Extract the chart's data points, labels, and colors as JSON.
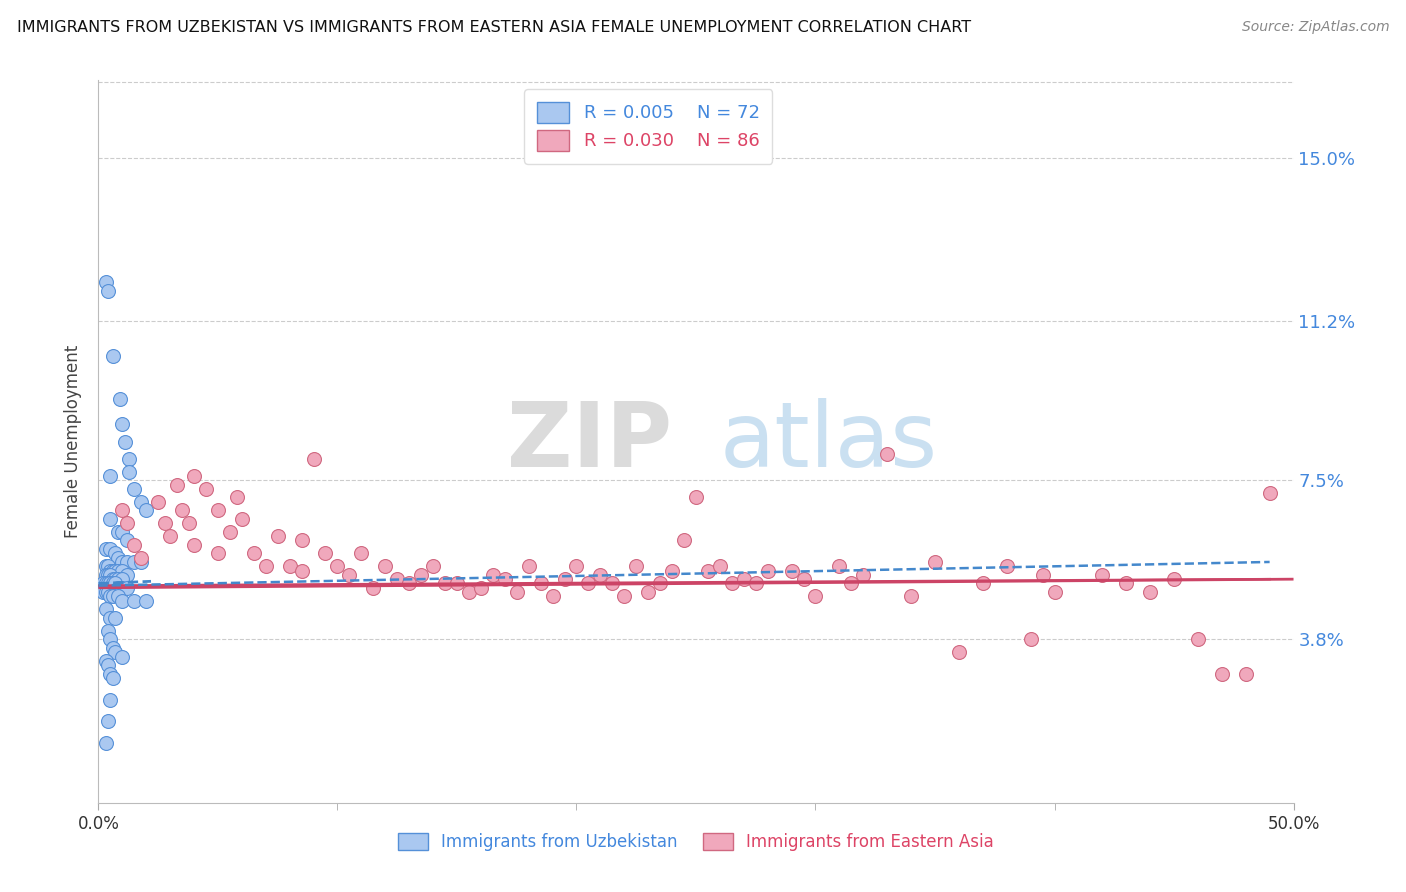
{
  "title": "IMMIGRANTS FROM UZBEKISTAN VS IMMIGRANTS FROM EASTERN ASIA FEMALE UNEMPLOYMENT CORRELATION CHART",
  "source": "Source: ZipAtlas.com",
  "ylabel": "Female Unemployment",
  "ytick_labels": [
    "15.0%",
    "11.2%",
    "7.5%",
    "3.8%"
  ],
  "ytick_values": [
    0.15,
    0.112,
    0.075,
    0.038
  ],
  "xlim": [
    0.0,
    0.5
  ],
  "ylim": [
    0.0,
    0.168
  ],
  "watermark_zip": "ZIP",
  "watermark_atlas": "atlas",
  "uzbekistan_color": "#aac8f0",
  "uzbekistan_edge": "#5590d8",
  "eastern_asia_color": "#f0a8bc",
  "eastern_asia_edge": "#d06880",
  "uzbekistan_line_color": "#4488cc",
  "eastern_asia_line_color": "#cc4466",
  "uzbekistan_R": "0.005",
  "uzbekistan_N": "72",
  "eastern_asia_R": "0.030",
  "eastern_asia_N": "86",
  "label_blue": "#4488dd",
  "label_pink": "#dd4466",
  "grid_color": "#cccccc",
  "background_color": "#ffffff",
  "uzbekistan_points": [
    [
      0.003,
      0.121
    ],
    [
      0.004,
      0.119
    ],
    [
      0.006,
      0.104
    ],
    [
      0.009,
      0.094
    ],
    [
      0.01,
      0.088
    ],
    [
      0.011,
      0.084
    ],
    [
      0.013,
      0.08
    ],
    [
      0.013,
      0.077
    ],
    [
      0.005,
      0.076
    ],
    [
      0.015,
      0.073
    ],
    [
      0.018,
      0.07
    ],
    [
      0.02,
      0.068
    ],
    [
      0.005,
      0.066
    ],
    [
      0.008,
      0.063
    ],
    [
      0.01,
      0.063
    ],
    [
      0.012,
      0.061
    ],
    [
      0.003,
      0.059
    ],
    [
      0.005,
      0.059
    ],
    [
      0.007,
      0.058
    ],
    [
      0.008,
      0.057
    ],
    [
      0.01,
      0.056
    ],
    [
      0.012,
      0.056
    ],
    [
      0.015,
      0.056
    ],
    [
      0.018,
      0.056
    ],
    [
      0.003,
      0.055
    ],
    [
      0.004,
      0.055
    ],
    [
      0.005,
      0.054
    ],
    [
      0.006,
      0.054
    ],
    [
      0.007,
      0.054
    ],
    [
      0.008,
      0.054
    ],
    [
      0.01,
      0.054
    ],
    [
      0.012,
      0.053
    ],
    [
      0.003,
      0.053
    ],
    [
      0.004,
      0.053
    ],
    [
      0.005,
      0.053
    ],
    [
      0.006,
      0.052
    ],
    [
      0.007,
      0.052
    ],
    [
      0.008,
      0.052
    ],
    [
      0.01,
      0.052
    ],
    [
      0.002,
      0.051
    ],
    [
      0.003,
      0.051
    ],
    [
      0.004,
      0.051
    ],
    [
      0.005,
      0.051
    ],
    [
      0.006,
      0.051
    ],
    [
      0.007,
      0.051
    ],
    [
      0.008,
      0.05
    ],
    [
      0.01,
      0.05
    ],
    [
      0.012,
      0.05
    ],
    [
      0.002,
      0.049
    ],
    [
      0.003,
      0.049
    ],
    [
      0.004,
      0.049
    ],
    [
      0.005,
      0.048
    ],
    [
      0.006,
      0.048
    ],
    [
      0.008,
      0.048
    ],
    [
      0.01,
      0.047
    ],
    [
      0.015,
      0.047
    ],
    [
      0.02,
      0.047
    ],
    [
      0.003,
      0.045
    ],
    [
      0.005,
      0.043
    ],
    [
      0.007,
      0.043
    ],
    [
      0.004,
      0.04
    ],
    [
      0.005,
      0.038
    ],
    [
      0.006,
      0.036
    ],
    [
      0.007,
      0.035
    ],
    [
      0.01,
      0.034
    ],
    [
      0.003,
      0.033
    ],
    [
      0.004,
      0.032
    ],
    [
      0.005,
      0.03
    ],
    [
      0.006,
      0.029
    ],
    [
      0.005,
      0.024
    ],
    [
      0.004,
      0.019
    ],
    [
      0.003,
      0.014
    ]
  ],
  "eastern_asia_points": [
    [
      0.01,
      0.068
    ],
    [
      0.012,
      0.065
    ],
    [
      0.015,
      0.06
    ],
    [
      0.018,
      0.057
    ],
    [
      0.025,
      0.07
    ],
    [
      0.028,
      0.065
    ],
    [
      0.03,
      0.062
    ],
    [
      0.033,
      0.074
    ],
    [
      0.035,
      0.068
    ],
    [
      0.038,
      0.065
    ],
    [
      0.04,
      0.06
    ],
    [
      0.04,
      0.076
    ],
    [
      0.045,
      0.073
    ],
    [
      0.05,
      0.068
    ],
    [
      0.05,
      0.058
    ],
    [
      0.055,
      0.063
    ],
    [
      0.058,
      0.071
    ],
    [
      0.06,
      0.066
    ],
    [
      0.065,
      0.058
    ],
    [
      0.07,
      0.055
    ],
    [
      0.075,
      0.062
    ],
    [
      0.08,
      0.055
    ],
    [
      0.085,
      0.054
    ],
    [
      0.085,
      0.061
    ],
    [
      0.09,
      0.08
    ],
    [
      0.095,
      0.058
    ],
    [
      0.1,
      0.055
    ],
    [
      0.105,
      0.053
    ],
    [
      0.11,
      0.058
    ],
    [
      0.115,
      0.05
    ],
    [
      0.12,
      0.055
    ],
    [
      0.125,
      0.052
    ],
    [
      0.13,
      0.051
    ],
    [
      0.135,
      0.053
    ],
    [
      0.14,
      0.055
    ],
    [
      0.145,
      0.051
    ],
    [
      0.15,
      0.051
    ],
    [
      0.155,
      0.049
    ],
    [
      0.16,
      0.05
    ],
    [
      0.165,
      0.053
    ],
    [
      0.17,
      0.052
    ],
    [
      0.175,
      0.049
    ],
    [
      0.18,
      0.055
    ],
    [
      0.185,
      0.051
    ],
    [
      0.19,
      0.048
    ],
    [
      0.195,
      0.052
    ],
    [
      0.2,
      0.055
    ],
    [
      0.205,
      0.051
    ],
    [
      0.21,
      0.053
    ],
    [
      0.215,
      0.051
    ],
    [
      0.22,
      0.048
    ],
    [
      0.225,
      0.055
    ],
    [
      0.23,
      0.049
    ],
    [
      0.235,
      0.051
    ],
    [
      0.24,
      0.054
    ],
    [
      0.245,
      0.061
    ],
    [
      0.25,
      0.071
    ],
    [
      0.255,
      0.054
    ],
    [
      0.26,
      0.055
    ],
    [
      0.265,
      0.051
    ],
    [
      0.27,
      0.052
    ],
    [
      0.275,
      0.051
    ],
    [
      0.28,
      0.054
    ],
    [
      0.29,
      0.054
    ],
    [
      0.295,
      0.052
    ],
    [
      0.3,
      0.048
    ],
    [
      0.31,
      0.055
    ],
    [
      0.315,
      0.051
    ],
    [
      0.32,
      0.053
    ],
    [
      0.33,
      0.081
    ],
    [
      0.34,
      0.048
    ],
    [
      0.35,
      0.056
    ],
    [
      0.36,
      0.035
    ],
    [
      0.37,
      0.051
    ],
    [
      0.38,
      0.055
    ],
    [
      0.39,
      0.038
    ],
    [
      0.395,
      0.053
    ],
    [
      0.4,
      0.049
    ],
    [
      0.42,
      0.053
    ],
    [
      0.43,
      0.051
    ],
    [
      0.44,
      0.049
    ],
    [
      0.45,
      0.052
    ],
    [
      0.46,
      0.038
    ],
    [
      0.47,
      0.03
    ],
    [
      0.48,
      0.03
    ],
    [
      0.49,
      0.072
    ]
  ],
  "uzb_trend_x": [
    0.0,
    0.022
  ],
  "uzb_trend_y0": 0.051,
  "uzb_trend_y1": 0.0515,
  "ea_trend_x0": 0.0,
  "ea_trend_x1": 0.5,
  "ea_trend_y0": 0.05,
  "ea_trend_y1": 0.052
}
